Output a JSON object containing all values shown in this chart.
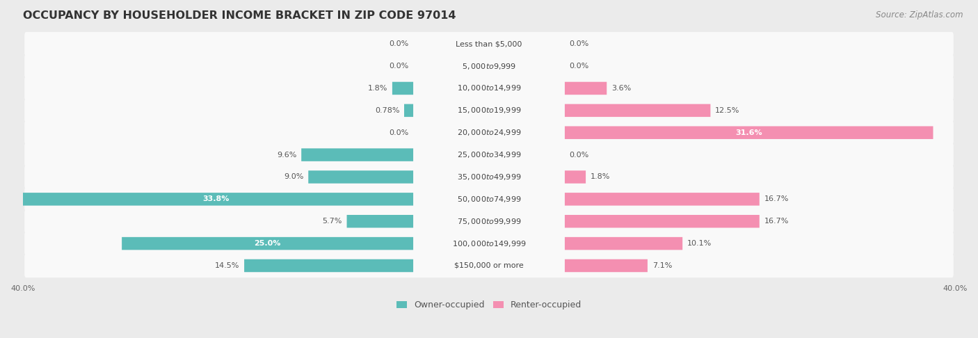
{
  "title": "OCCUPANCY BY HOUSEHOLDER INCOME BRACKET IN ZIP CODE 97014",
  "source": "Source: ZipAtlas.com",
  "categories": [
    "Less than $5,000",
    "$5,000 to $9,999",
    "$10,000 to $14,999",
    "$15,000 to $19,999",
    "$20,000 to $24,999",
    "$25,000 to $34,999",
    "$35,000 to $49,999",
    "$50,000 to $74,999",
    "$75,000 to $99,999",
    "$100,000 to $149,999",
    "$150,000 or more"
  ],
  "owner_values": [
    0.0,
    0.0,
    1.8,
    0.78,
    0.0,
    9.6,
    9.0,
    33.8,
    5.7,
    25.0,
    14.5
  ],
  "renter_values": [
    0.0,
    0.0,
    3.6,
    12.5,
    31.6,
    0.0,
    1.8,
    16.7,
    16.7,
    10.1,
    7.1
  ],
  "owner_color": "#5bbcb8",
  "renter_color": "#f48fb1",
  "owner_label": "Owner-occupied",
  "renter_label": "Renter-occupied",
  "axis_max": 40.0,
  "background_color": "#ebebeb",
  "bar_bg_color": "#f9f9f9",
  "title_fontsize": 11.5,
  "source_fontsize": 8.5,
  "label_fontsize": 8,
  "category_fontsize": 8,
  "legend_fontsize": 9,
  "axis_label_fontsize": 8
}
